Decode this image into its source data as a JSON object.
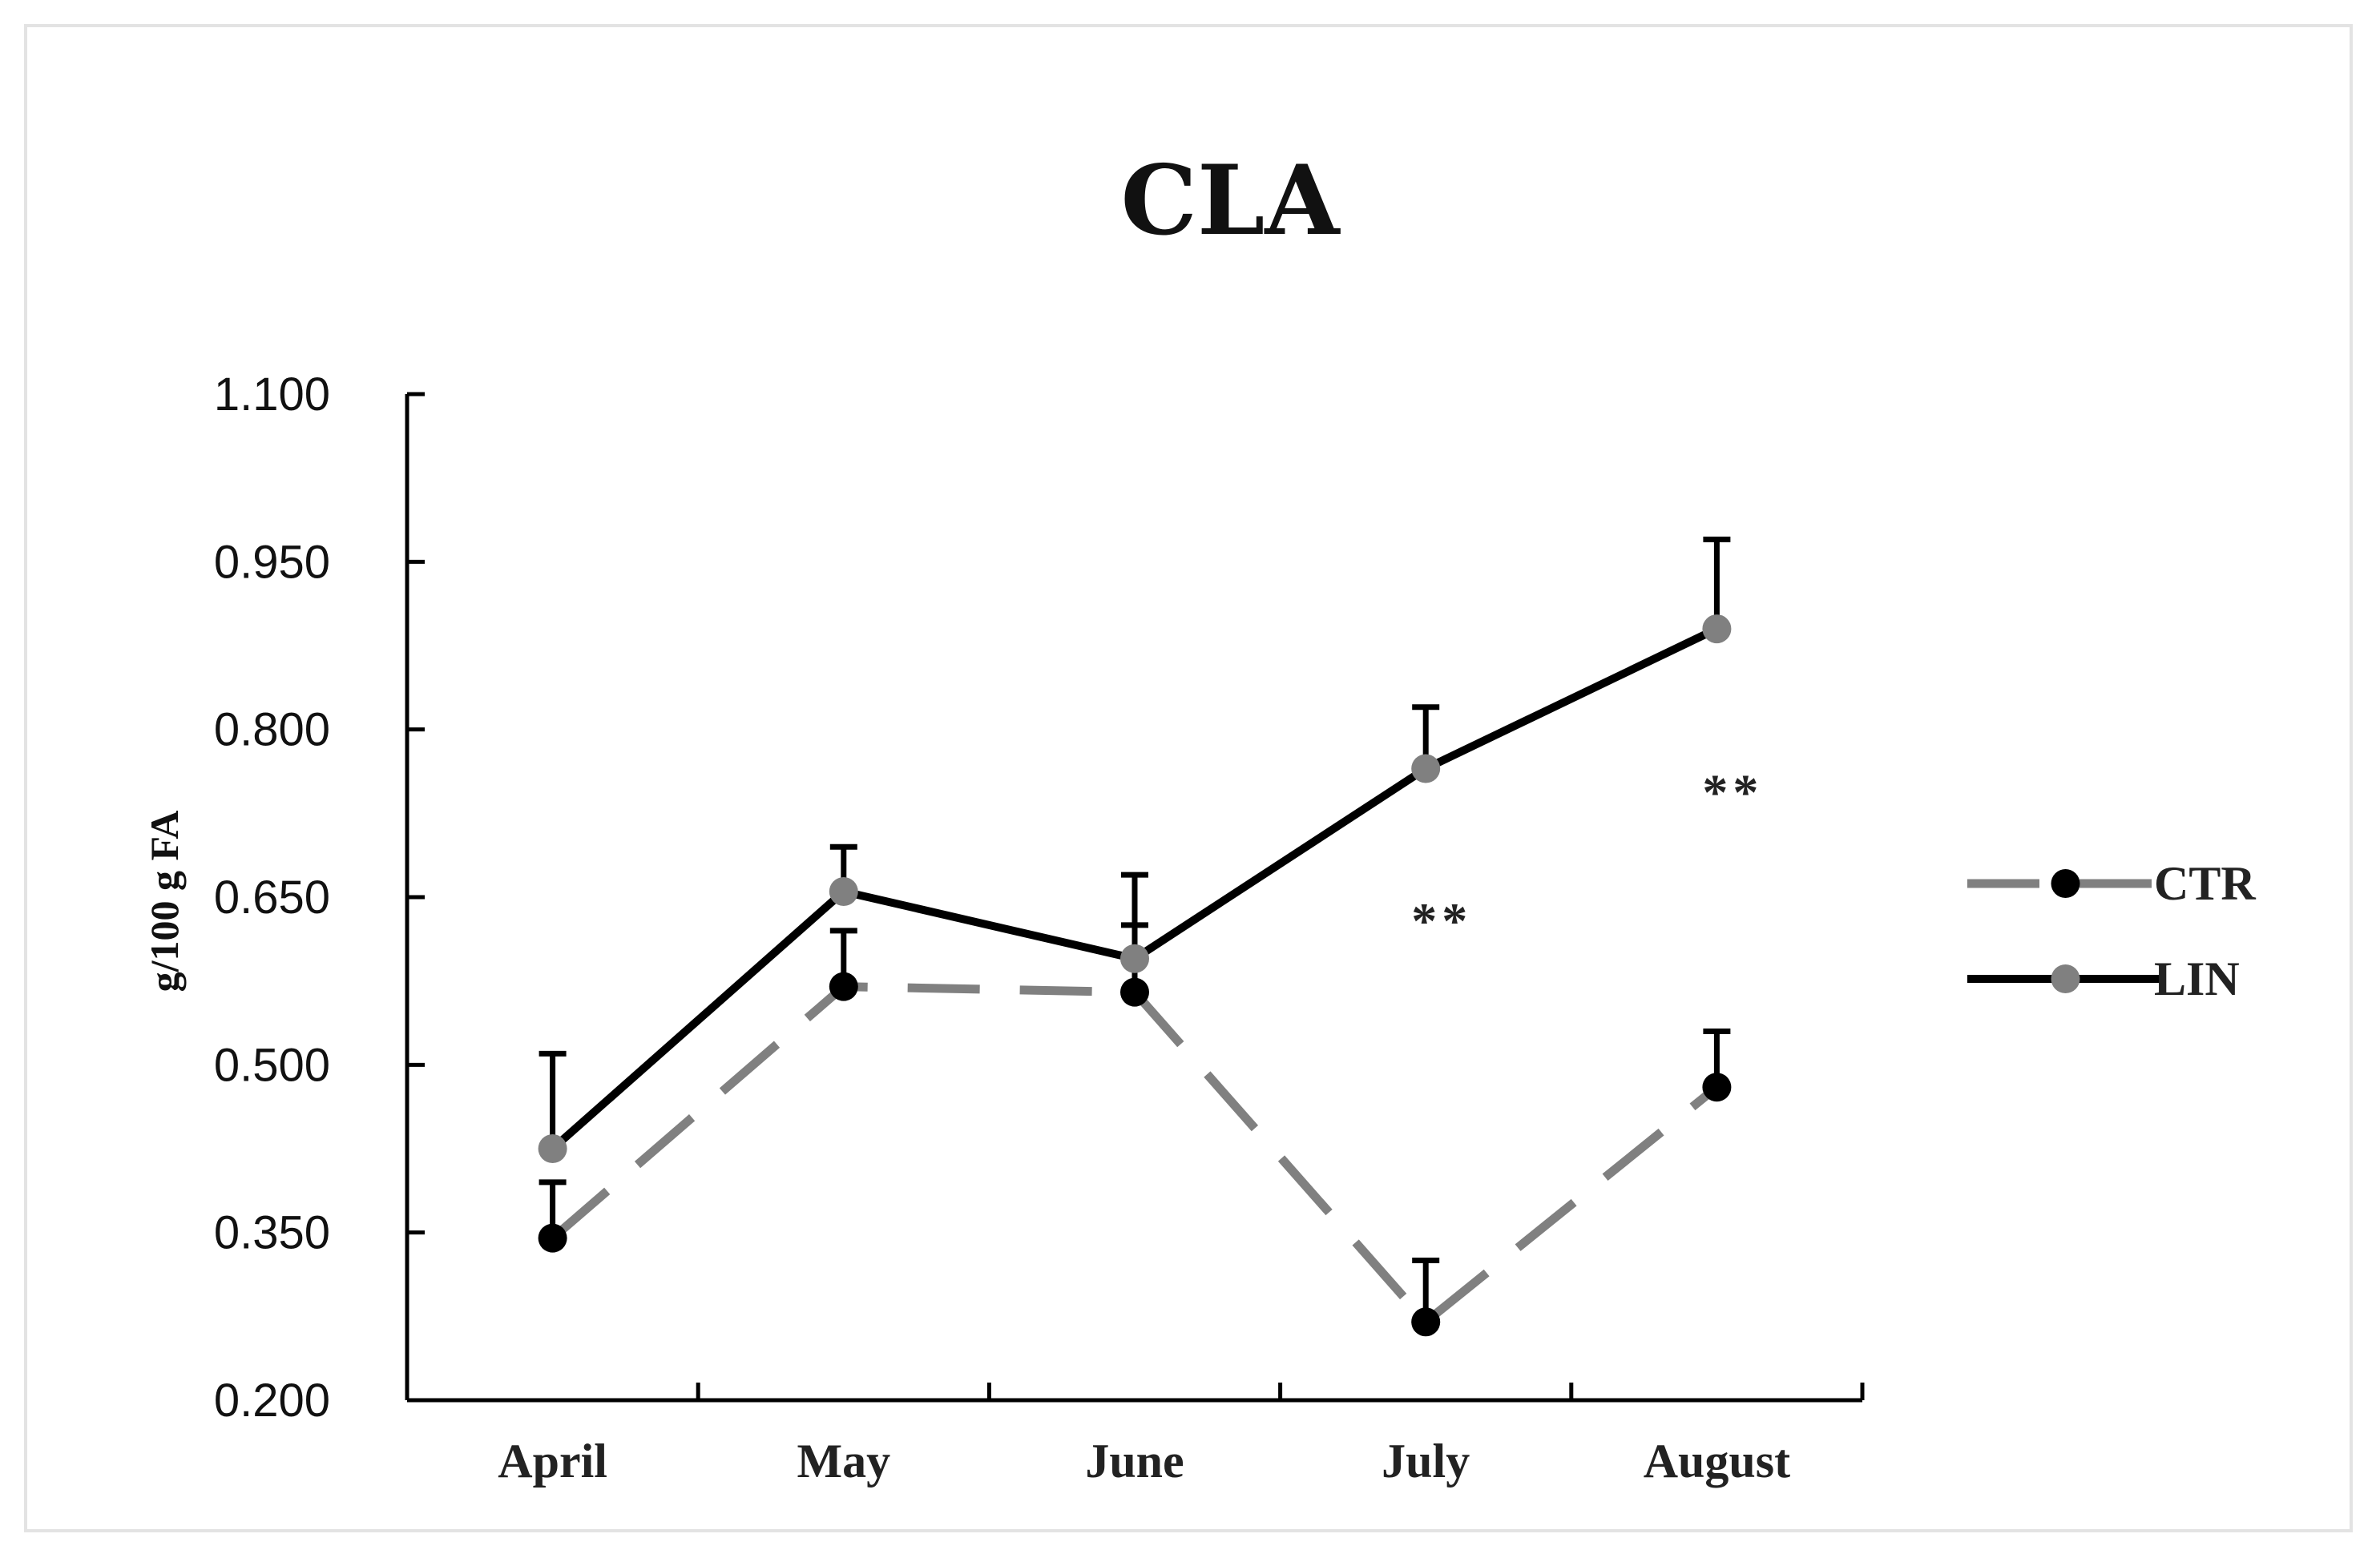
{
  "chart_data": {
    "type": "line",
    "title": "CLA",
    "ylabel": "g/100 g FA",
    "xlabel": "",
    "categories": [
      "April",
      "May",
      "June",
      "July",
      "August"
    ],
    "yticks": [
      "0.200",
      "0.350",
      "0.500",
      "0.650",
      "0.800",
      "0.950",
      "1.100"
    ],
    "ylim": [
      0.2,
      1.1
    ],
    "grid": false,
    "legend_position": "right",
    "series": [
      {
        "name": "CTR",
        "values": [
          0.345,
          0.57,
          0.565,
          0.27,
          0.48
        ],
        "errors": [
          0.05,
          0.05,
          0.06,
          0.055,
          0.05
        ],
        "line_color": "#808080",
        "marker_color": "#000000",
        "line_style": "dashed"
      },
      {
        "name": "LIN",
        "values": [
          0.425,
          0.655,
          0.595,
          0.765,
          0.89
        ],
        "errors": [
          0.085,
          0.04,
          0.075,
          0.055,
          0.08
        ],
        "line_color": "#000000",
        "marker_color": "#808080",
        "line_style": "solid"
      }
    ],
    "annotations": [
      {
        "text": "**",
        "x": "July",
        "y": 0.635
      },
      {
        "text": "**",
        "x": "August",
        "y": 0.75
      }
    ]
  }
}
